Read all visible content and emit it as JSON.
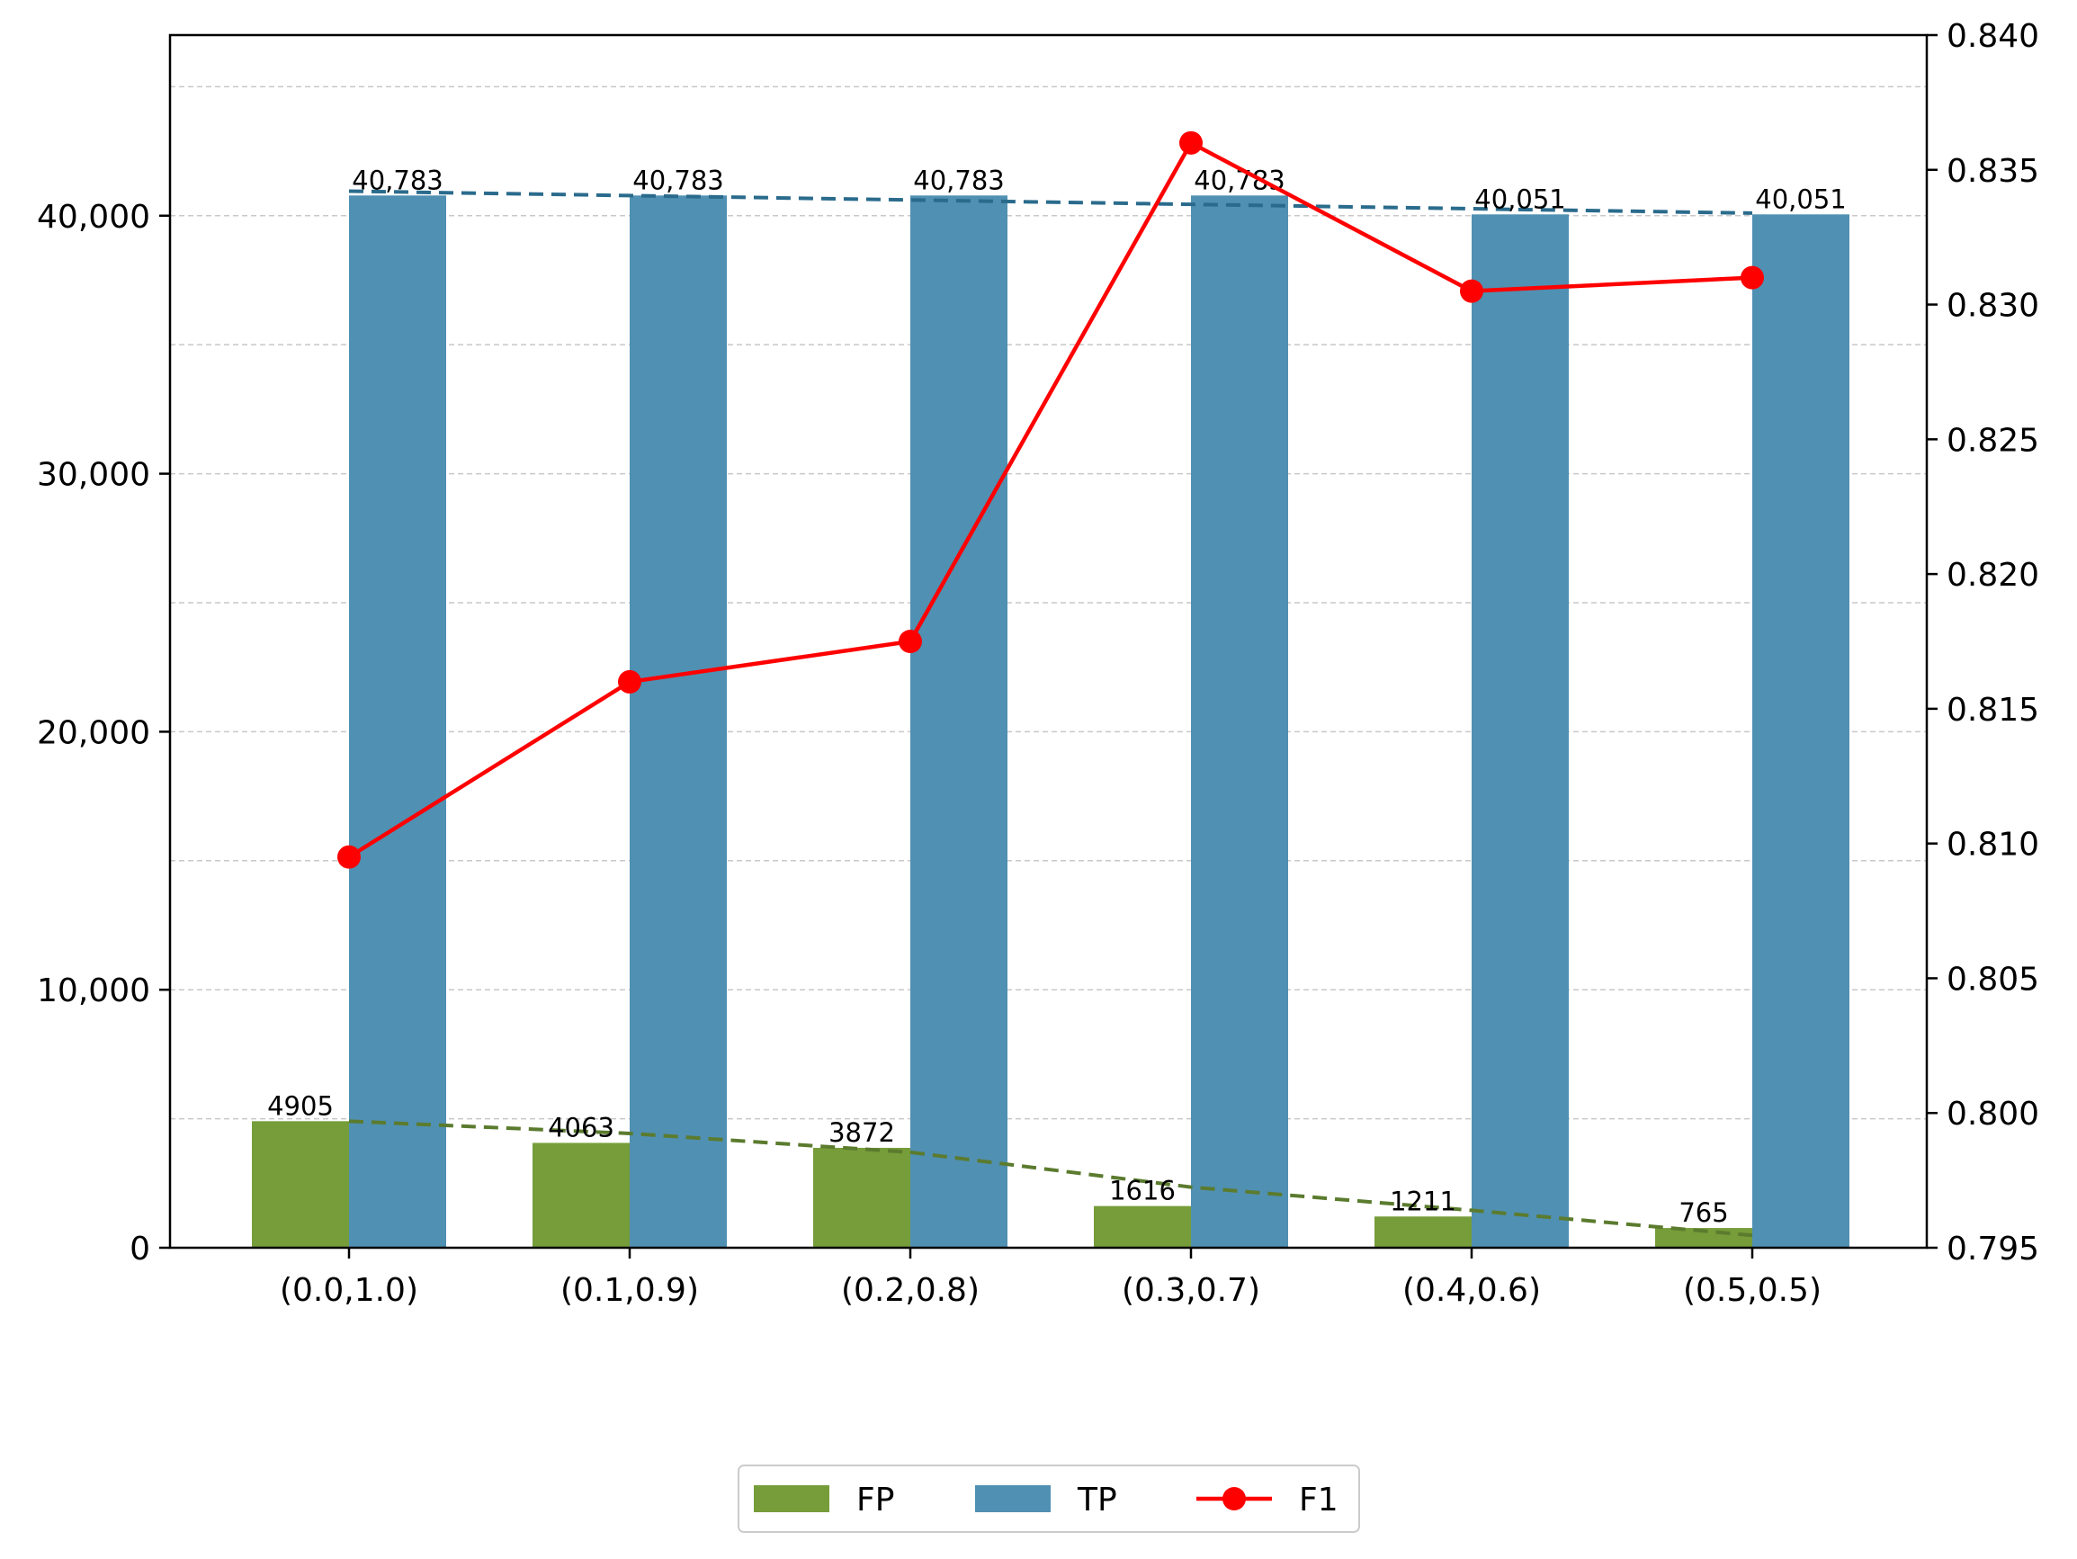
{
  "chart_data": {
    "type": "bar",
    "categories": [
      "(0.0,1.0)",
      "(0.1,0.9)",
      "(0.2,0.8)",
      "(0.3,0.7)",
      "(0.4,0.6)",
      "(0.5,0.5)"
    ],
    "series": [
      {
        "name": "FP",
        "values": [
          4905,
          4063,
          3872,
          1616,
          1211,
          765
        ],
        "data_labels": [
          "4905",
          "4063",
          "3872",
          "1616",
          "1211",
          "765"
        ],
        "color": "#769d3a",
        "axis": "left",
        "kind": "bar"
      },
      {
        "name": "TP",
        "values": [
          40783,
          40783,
          40783,
          40783,
          40051,
          40051
        ],
        "data_labels": [
          "40,783",
          "40,783",
          "40,783",
          "40,783",
          "40,051",
          "40,051"
        ],
        "color": "#5090b2",
        "axis": "left",
        "kind": "bar"
      },
      {
        "name": "F1",
        "values": [
          0.8095,
          0.816,
          0.8175,
          0.836,
          0.8305,
          0.831
        ],
        "color": "#ff0000",
        "axis": "right",
        "kind": "line",
        "marker": "circle"
      }
    ],
    "trendlines": [
      {
        "series": "FP",
        "color": "#5b7b2e",
        "style": "dashed",
        "values": [
          4905,
          4430,
          3700,
          2350,
          1450,
          480
        ]
      },
      {
        "series": "TP",
        "color": "#2a6b8c",
        "style": "dashed",
        "values": [
          40950,
          40780,
          40610,
          40440,
          40270,
          40100
        ]
      }
    ],
    "y_left": {
      "ylim": [
        0,
        47000
      ],
      "ticks": [
        0,
        10000,
        20000,
        30000,
        40000
      ],
      "tick_labels": [
        "0",
        "10,000",
        "20,000",
        "30,000",
        "40,000"
      ],
      "grid_minor": [
        5000,
        15000,
        25000,
        35000,
        45000
      ]
    },
    "y_right": {
      "ylim": [
        0.795,
        0.84
      ],
      "ticks": [
        0.795,
        0.8,
        0.805,
        0.81,
        0.815,
        0.82,
        0.825,
        0.83,
        0.835,
        0.84
      ],
      "tick_labels": [
        "0.795",
        "0.800",
        "0.805",
        "0.810",
        "0.815",
        "0.820",
        "0.825",
        "0.830",
        "0.835",
        "0.840"
      ]
    },
    "grid": true,
    "legend": {
      "position": "bottom-center",
      "entries": [
        "FP",
        "TP",
        "F1"
      ]
    }
  }
}
